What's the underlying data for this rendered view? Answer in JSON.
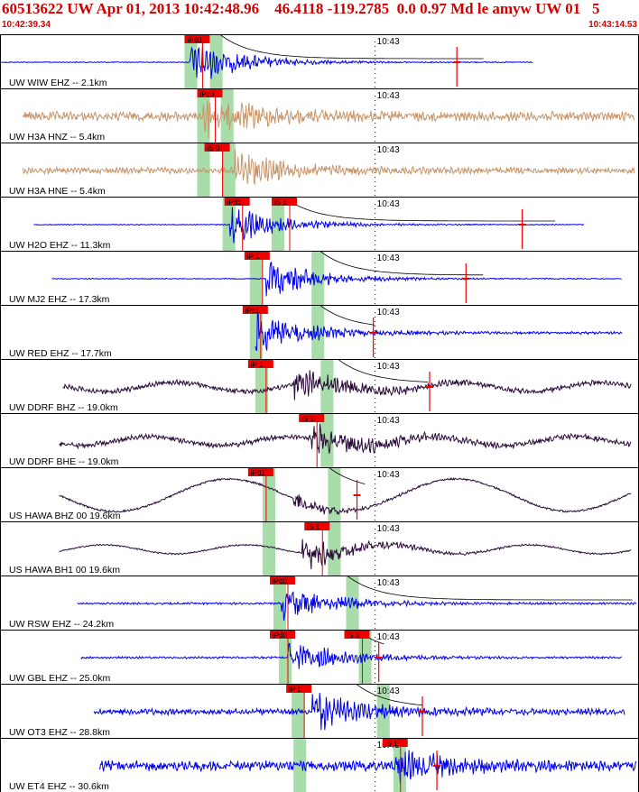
{
  "header": {
    "title": "60513622 UW Apr 01, 2013 10:42:48.96    46.4118 -119.2785  0.0 0.97 Md le amyw UW 01   5",
    "start_time": "10:42:39.34",
    "end_time": "10:43:14.53"
  },
  "chart_data": {
    "type": "line",
    "title": "60513622 UW Apr 01, 2013 10:42:48.96    46.4118 -119.2785  0.0 0.97 Md le amyw UW 01   5",
    "x_range": [
      "10:42:39.34",
      "10:43:14.53"
    ],
    "x_range_seconds": [
      39.34,
      74.53
    ],
    "x_tick": {
      "label": "10:43",
      "seconds": 60
    },
    "origin_seconds": 48.96,
    "colors": {
      "blue": "#0000ee",
      "tan": "#c8956a",
      "purple": "#2a0a3a",
      "pick": "#ee0000",
      "window": "#a8dca8",
      "coda": "#000000"
    },
    "traces": [
      {
        "label": "UW WIW EHZ -- 2.1km",
        "color": "blue",
        "start": 39.4,
        "end": 68.7,
        "amp": 0.9,
        "noise": 0.02,
        "envelope": "quake",
        "onset": 49.8,
        "spike": 64.5,
        "picks": [
          {
            "label": "iPd0",
            "t": 49.8
          }
        ],
        "windows": [
          [
            49.5,
            50.2
          ],
          [
            50.9,
            51.6
          ]
        ],
        "coda": [
          51.5,
          66
        ]
      },
      {
        "label": "UW H3A HNZ -- 5.4km",
        "color": "tan",
        "start": 40.6,
        "end": 74.3,
        "amp": 0.8,
        "noise": 0.18,
        "envelope": "quake",
        "onset": 50.5,
        "picks": [
          {
            "label": "iPc0",
            "t": 50.5
          }
        ],
        "windows": [
          [
            50.2,
            50.9
          ],
          [
            51.5,
            52.2
          ]
        ]
      },
      {
        "label": "UW H3A HNE -- 5.4km",
        "color": "tan",
        "start": 40.6,
        "end": 74.3,
        "amp": 0.7,
        "noise": 0.12,
        "envelope": "quake",
        "onset": 52.2,
        "picks": [
          {
            "label": "iS 0",
            "t": 50.9
          }
        ],
        "windows": [
          [
            50.2,
            50.9
          ],
          [
            51.6,
            52.3
          ]
        ]
      },
      {
        "label": "UW H2O EHZ -- 11.3km",
        "color": "blue",
        "start": 41.2,
        "end": 71.5,
        "amp": 0.75,
        "noise": 0.02,
        "envelope": "quake",
        "onset": 52.0,
        "spike": 68.1,
        "picks": [
          {
            "label": "iPd1",
            "t": 52.0
          },
          {
            "label": "iS 1",
            "t": 54.6
          }
        ],
        "windows": [
          [
            51.6,
            52.3
          ],
          [
            54.3,
            55.0
          ]
        ],
        "coda": [
          55,
          70
        ]
      },
      {
        "label": "UW MJ2 EHZ -- 17.3km",
        "color": "blue",
        "start": 42.2,
        "end": 73.6,
        "amp": 0.8,
        "noise": 0.02,
        "envelope": "quake",
        "onset": 54.0,
        "spike": 65.0,
        "picks": [
          {
            "label": "iP 1",
            "t": 53.1
          }
        ],
        "windows": [
          [
            53.1,
            53.8
          ],
          [
            56.5,
            57.2
          ]
        ],
        "coda": [
          57,
          66
        ]
      },
      {
        "label": "UW RED EHZ -- 17.7km",
        "color": "blue",
        "start": 53.4,
        "end": 73.6,
        "amp": 0.8,
        "noise": 0.05,
        "envelope": "quake",
        "onset": 53.4,
        "spike": 59.9,
        "picks": [
          {
            "label": "iPc1",
            "t": 53.0
          }
        ],
        "windows": [
          [
            53.1,
            53.8
          ],
          [
            56.5,
            57.2
          ]
        ],
        "coda": [
          57,
          60
        ]
      },
      {
        "label": "UW DDRF BHZ -- 19.0km",
        "color": "purple",
        "start": 42.8,
        "end": 74.1,
        "amp": 0.6,
        "noise": 0.1,
        "envelope": "quake",
        "onset": 55.5,
        "spike": 63.0,
        "picks": [
          {
            "label": "iP 1",
            "t": 53.3
          }
        ],
        "windows": [
          [
            53.4,
            54.1
          ],
          [
            57.0,
            57.7
          ]
        ],
        "coda": [
          58,
          63
        ]
      },
      {
        "label": "UW DDRF BHE -- 19.0km",
        "color": "purple",
        "start": 42.6,
        "end": 74.1,
        "amp": 0.7,
        "noise": 0.1,
        "envelope": "quake",
        "onset": 56.5,
        "picks": [
          {
            "label": "iS 1",
            "t": 56.1
          }
        ],
        "windows": [
          [
            57.0,
            57.7
          ]
        ]
      },
      {
        "label": "US HAWA BHZ 00 19.6km",
        "color": "purple",
        "start": 42.6,
        "end": 74.1,
        "amp": 0.45,
        "noise": 0.02,
        "envelope": "wave",
        "onset": 55.5,
        "spike": 59.0,
        "picks": [
          {
            "label": "iPd1",
            "t": 53.3
          }
        ],
        "windows": [
          [
            53.8,
            54.5
          ],
          [
            57.4,
            58.1
          ]
        ],
        "coda": [
          57.5,
          59.5
        ]
      },
      {
        "label": "US HAWA BH1 00 19.6km",
        "color": "purple",
        "start": 42.6,
        "end": 74.1,
        "amp": 0.65,
        "noise": 0.03,
        "envelope": "quake",
        "onset": 56.0,
        "picks": [
          {
            "label": "iS 1",
            "t": 56.4
          }
        ],
        "windows": [
          [
            53.8,
            54.5
          ],
          [
            57.4,
            58.1
          ]
        ]
      },
      {
        "label": "UW RSW EHZ -- 24.2km",
        "color": "blue",
        "start": 43.6,
        "end": 74.4,
        "amp": 0.7,
        "noise": 0.04,
        "envelope": "quake",
        "onset": 54.8,
        "picks": [
          {
            "label": "iPd0",
            "t": 54.5
          }
        ],
        "windows": [
          [
            54.4,
            55.1
          ],
          [
            58.4,
            59.1
          ]
        ],
        "coda": [
          58.5,
          74.3
        ]
      },
      {
        "label": "UW GBL EHZ -- 25.0km",
        "color": "blue",
        "start": 43.8,
        "end": 73.6,
        "amp": 0.7,
        "noise": 0.04,
        "envelope": "quake",
        "onset": 55.2,
        "spike": 60.2,
        "picks": [
          {
            "label": "iPd0",
            "t": 54.5
          },
          {
            "label": "iS 3",
            "t": 58.6
          }
        ],
        "windows": [
          [
            54.7,
            55.4
          ],
          [
            59.1,
            59.8
          ]
        ],
        "coda": [
          59,
          60.5
        ]
      },
      {
        "label": "UW OT3 EHZ -- 28.8km",
        "color": "blue",
        "start": 44.5,
        "end": 73.8,
        "amp": 0.7,
        "noise": 0.12,
        "envelope": "quake",
        "onset": 56.5,
        "spike": 62.6,
        "picks": [
          {
            "label": "iP 1",
            "t": 55.4
          }
        ],
        "windows": [
          [
            55.4,
            56.1
          ],
          [
            60.1,
            60.8
          ]
        ],
        "coda": [
          59,
          62.6
        ]
      },
      {
        "label": "UW ET4 EHZ -- 30.6km",
        "color": "blue",
        "start": 44.8,
        "end": 74.4,
        "amp": 0.6,
        "noise": 0.2,
        "envelope": "quake",
        "onset": 61.0,
        "spike": 63.4,
        "picks": [
          {
            "label": "iS 1",
            "t": 60.7
          }
        ],
        "windows": [
          [
            55.5,
            56.2
          ],
          [
            61.0,
            61.7
          ]
        ]
      }
    ]
  }
}
